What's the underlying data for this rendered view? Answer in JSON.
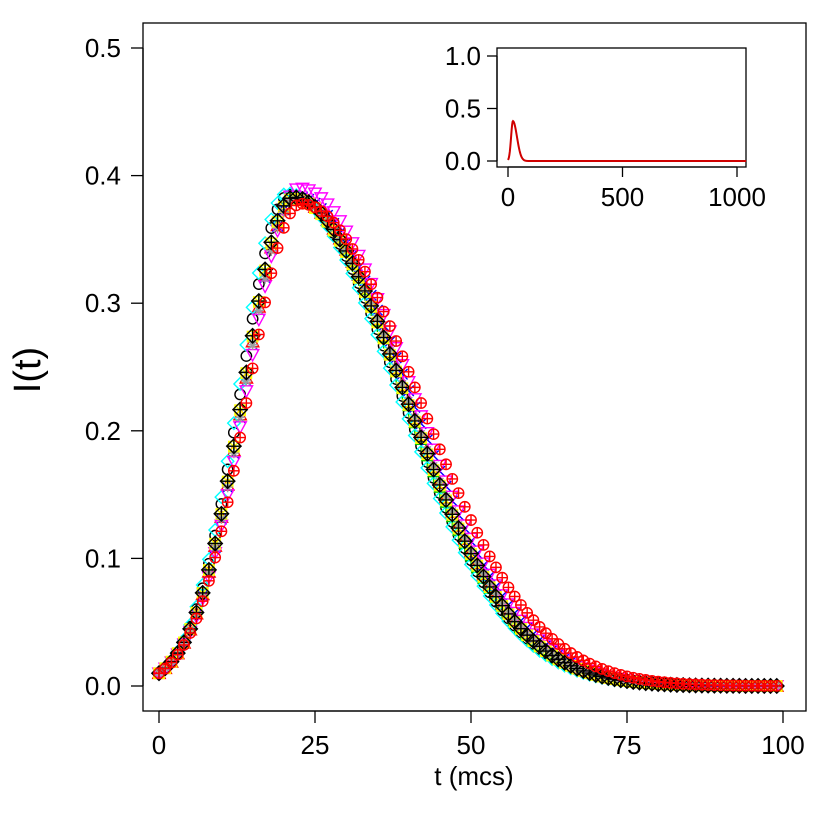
{
  "chart_data": {
    "type": "scatter",
    "title": "",
    "xlabel": "t (mcs)",
    "ylabel": "I(t)",
    "xlim": [
      0,
      100
    ],
    "ylim": [
      0,
      0.5
    ],
    "xticks": [
      "0",
      "25",
      "50",
      "75",
      "100"
    ],
    "yticks": [
      "0.0",
      "0.1",
      "0.2",
      "0.3",
      "0.4",
      "0.5"
    ],
    "grid": false,
    "legend": "none",
    "series_model": {
      "peak_time": 21.5,
      "peak_value": 0.38,
      "initial_value": 0.01,
      "x_range": [
        0,
        99
      ]
    },
    "series": [
      {
        "color": "#000000",
        "marker": "circle",
        "peak_shift": -0.6,
        "width_scale": 1.0,
        "amp": 0.385
      },
      {
        "color": "#ff0000",
        "marker": "triangle-up",
        "peak_shift": 0.2,
        "width_scale": 1.0,
        "amp": 0.382
      },
      {
        "color": "#00cd00",
        "marker": "plus",
        "peak_shift": 0.0,
        "width_scale": 0.98,
        "amp": 0.383
      },
      {
        "color": "#0000ff",
        "marker": "cross",
        "peak_shift": 0.4,
        "width_scale": 1.02,
        "amp": 0.384
      },
      {
        "color": "#00ffff",
        "marker": "diamond",
        "peak_shift": -1.0,
        "width_scale": 1.0,
        "amp": 0.386
      },
      {
        "color": "#ff00ff",
        "marker": "triangle-down",
        "peak_shift": 1.0,
        "width_scale": 1.0,
        "amp": 0.39
      },
      {
        "color": "#ffff00",
        "marker": "square-x",
        "peak_shift": 0.0,
        "width_scale": 1.0,
        "amp": 0.382
      },
      {
        "color": "#9e9e9e",
        "marker": "asterisk",
        "peak_shift": 0.3,
        "width_scale": 1.0,
        "amp": 0.381
      },
      {
        "color": "#000000",
        "marker": "diamond-plus",
        "peak_shift": 0.0,
        "width_scale": 1.0,
        "amp": 0.383
      },
      {
        "color": "#ff0000",
        "marker": "circle-plus",
        "peak_shift": 1.2,
        "width_scale": 1.06,
        "amp": 0.378
      }
    ],
    "inset": {
      "type": "line",
      "color": "#d00000",
      "xlim": [
        0,
        1050
      ],
      "ylim": [
        0,
        1.0
      ],
      "xticks": [
        "0",
        "500",
        "1000"
      ],
      "yticks": [
        "0.0",
        "0.5",
        "1.0"
      ],
      "peak_time": 21.5,
      "peak_value": 0.38
    }
  }
}
